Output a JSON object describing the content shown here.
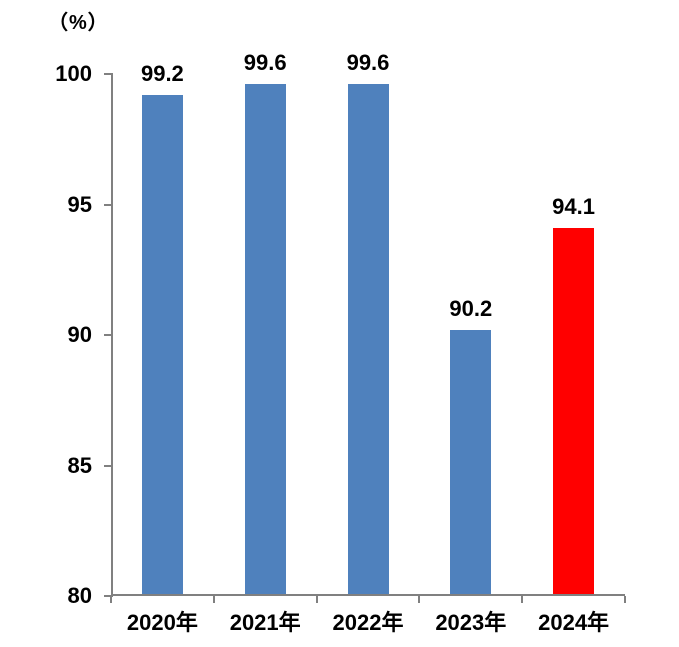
{
  "chart_data": {
    "type": "bar",
    "title": "",
    "ylabel": "（%）",
    "xlabel": "",
    "categories": [
      "2020年",
      "2021年",
      "2022年",
      "2023年",
      "2024年"
    ],
    "values": [
      99.2,
      99.6,
      99.6,
      90.2,
      94.1
    ],
    "data_labels": [
      "99.2",
      "99.6",
      "99.6",
      "90.2",
      "94.1"
    ],
    "bar_colors": [
      "#4F81BD",
      "#4F81BD",
      "#4F81BD",
      "#4F81BD",
      "#FF0000"
    ],
    "default_bar_color": "#4F81BD",
    "highlight_color": "#FF0000",
    "ylim": [
      80,
      100
    ],
    "yticks": [
      100,
      95,
      90,
      85,
      80
    ],
    "grid": false,
    "legend_position": "none",
    "axis_color": "#808080",
    "text_color": "#000000",
    "background_color": "#FFFFFF"
  }
}
